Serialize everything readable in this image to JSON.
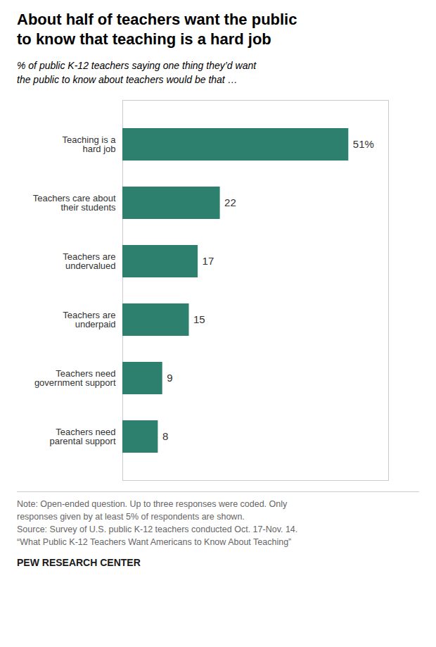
{
  "chart_data": {
    "type": "bar",
    "orientation": "horizontal",
    "title": "About half of teachers want the public\nto know that teaching is a hard job",
    "subtitle": "% of public K-12 teachers saying one thing they’d want\nthe public to know about teachers would be that …",
    "categories": [
      "Teaching is a\nhard job",
      "Teachers care about\ntheir students",
      "Teachers are\nundervalued",
      "Teachers are\nunderpaid",
      "Teachers need\ngovernment support",
      "Teachers need\nparental support"
    ],
    "values": [
      51,
      22,
      17,
      15,
      9,
      8
    ],
    "value_labels": [
      "51%",
      "22",
      "17",
      "15",
      "9",
      "8"
    ],
    "data_labels": true,
    "color": "#2d7f6e",
    "xlim": [
      0,
      60
    ],
    "tick_labels": "y",
    "grid": false,
    "annotations": [
      "Note: Open-ended question. Up to three responses were coded. Only\nresponses given by at least 5% of respondents are shown.\nSource: Survey of U.S. public K-12 teachers conducted Oct. 17-Nov. 14.\n“What Public K-12 Teachers Want Americans to Know About Teaching”",
      "PEW RESEARCH CENTER"
    ]
  }
}
